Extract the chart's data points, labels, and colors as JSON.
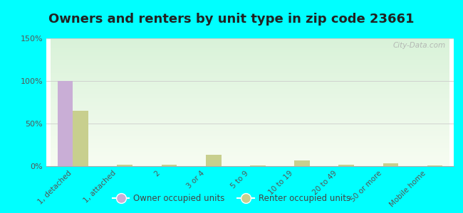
{
  "title": "Owners and renters by unit type in zip code 23661",
  "categories": [
    "1, detached",
    "1, attached",
    "2",
    "3 or 4",
    "5 to 9",
    "10 to 19",
    "20 to 49",
    "50 or more",
    "Mobile home"
  ],
  "owner_values": [
    100,
    0,
    0,
    0,
    0,
    0,
    0,
    0,
    0
  ],
  "renter_values": [
    65,
    2,
    2,
    13,
    1,
    7,
    2,
    3,
    1
  ],
  "owner_color": "#c9aed6",
  "renter_color": "#c8cf8e",
  "ylim": [
    0,
    150
  ],
  "yticks": [
    0,
    50,
    100,
    150
  ],
  "ytick_labels": [
    "0%",
    "50%",
    "100%",
    "150%"
  ],
  "background_color": "#00ffff",
  "watermark": "City-Data.com",
  "legend_owner": "Owner occupied units",
  "legend_renter": "Renter occupied units",
  "title_fontsize": 13,
  "bar_width": 0.35
}
